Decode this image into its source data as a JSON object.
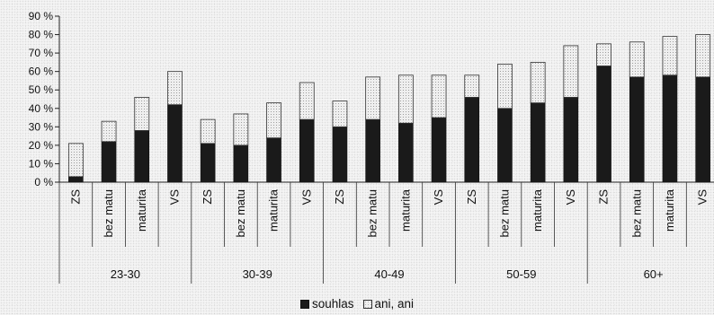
{
  "chart_data": {
    "type": "bar",
    "stacked": true,
    "y_tick_labels": [
      "0 %",
      "10 %",
      "20 %",
      "30 %",
      "40 %",
      "50 %",
      "60 %",
      "70 %",
      "80 %",
      "90 %"
    ],
    "ylim": [
      0,
      90
    ],
    "groups": [
      {
        "label": "23-30",
        "categories": [
          "ZS",
          "bez matu",
          "maturita",
          "VS"
        ]
      },
      {
        "label": "30-39",
        "categories": [
          "ZS",
          "bez matu",
          "maturita",
          "VS"
        ]
      },
      {
        "label": "40-49",
        "categories": [
          "ZS",
          "bez matu",
          "maturita",
          "VS"
        ]
      },
      {
        "label": "50-59",
        "categories": [
          "ZS",
          "bez matu",
          "maturita",
          "VS"
        ]
      },
      {
        "label": "60+",
        "categories": [
          "ZS",
          "bez matu",
          "maturita",
          "VS"
        ]
      }
    ],
    "series": [
      {
        "name": "souhlas",
        "color": "#1a1a1a",
        "values": [
          3,
          22,
          28,
          42,
          21,
          20,
          24,
          34,
          30,
          34,
          32,
          35,
          46,
          40,
          43,
          46,
          63,
          57,
          58,
          57
        ]
      },
      {
        "name": "ani, ani",
        "color": "#efefef",
        "values": [
          18,
          11,
          18,
          18,
          13,
          17,
          19,
          20,
          14,
          23,
          26,
          23,
          12,
          24,
          22,
          28,
          12,
          19,
          21,
          23
        ]
      }
    ],
    "grid": false,
    "legend_position": "bottom"
  }
}
